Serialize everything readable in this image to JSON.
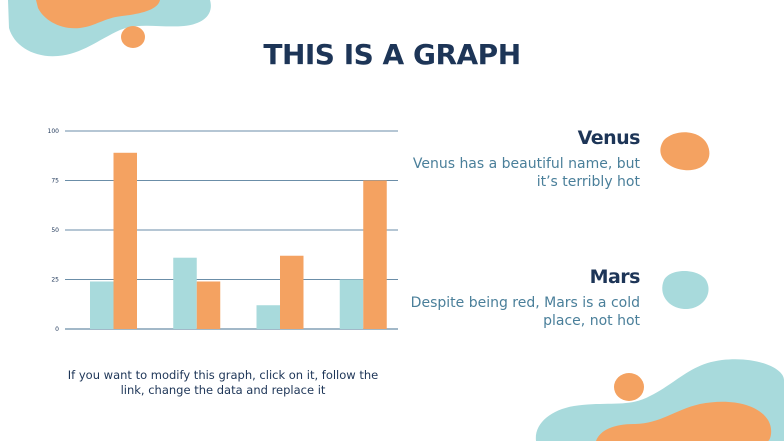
{
  "slide": {
    "title": "THIS IS A GRAPH"
  },
  "caption": "If you want to modify this graph, click on it, follow the link, change the data and replace it",
  "legend": [
    {
      "name": "Venus",
      "description": "Venus has a beautiful name, but it’s terribly hot"
    },
    {
      "name": "Mars",
      "description": "Despite being red, Mars is a cold place, not hot"
    }
  ],
  "colors": {
    "teal": "#a8dadc",
    "orange": "#f4a261",
    "navy": "#1d3557",
    "gridline": "#6b8ea8"
  },
  "chart_data": {
    "type": "bar",
    "categories": [
      "",
      "",
      "",
      ""
    ],
    "series": [
      {
        "values": [
          24,
          36,
          12,
          25
        ],
        "color": "#a8dadc"
      },
      {
        "values": [
          89,
          24,
          37,
          75
        ],
        "color": "#f4a261"
      }
    ],
    "yticks": [
      0,
      25,
      50,
      75,
      100
    ],
    "ylim": [
      0,
      100
    ],
    "grid": true,
    "xlabel": "",
    "ylabel": ""
  }
}
